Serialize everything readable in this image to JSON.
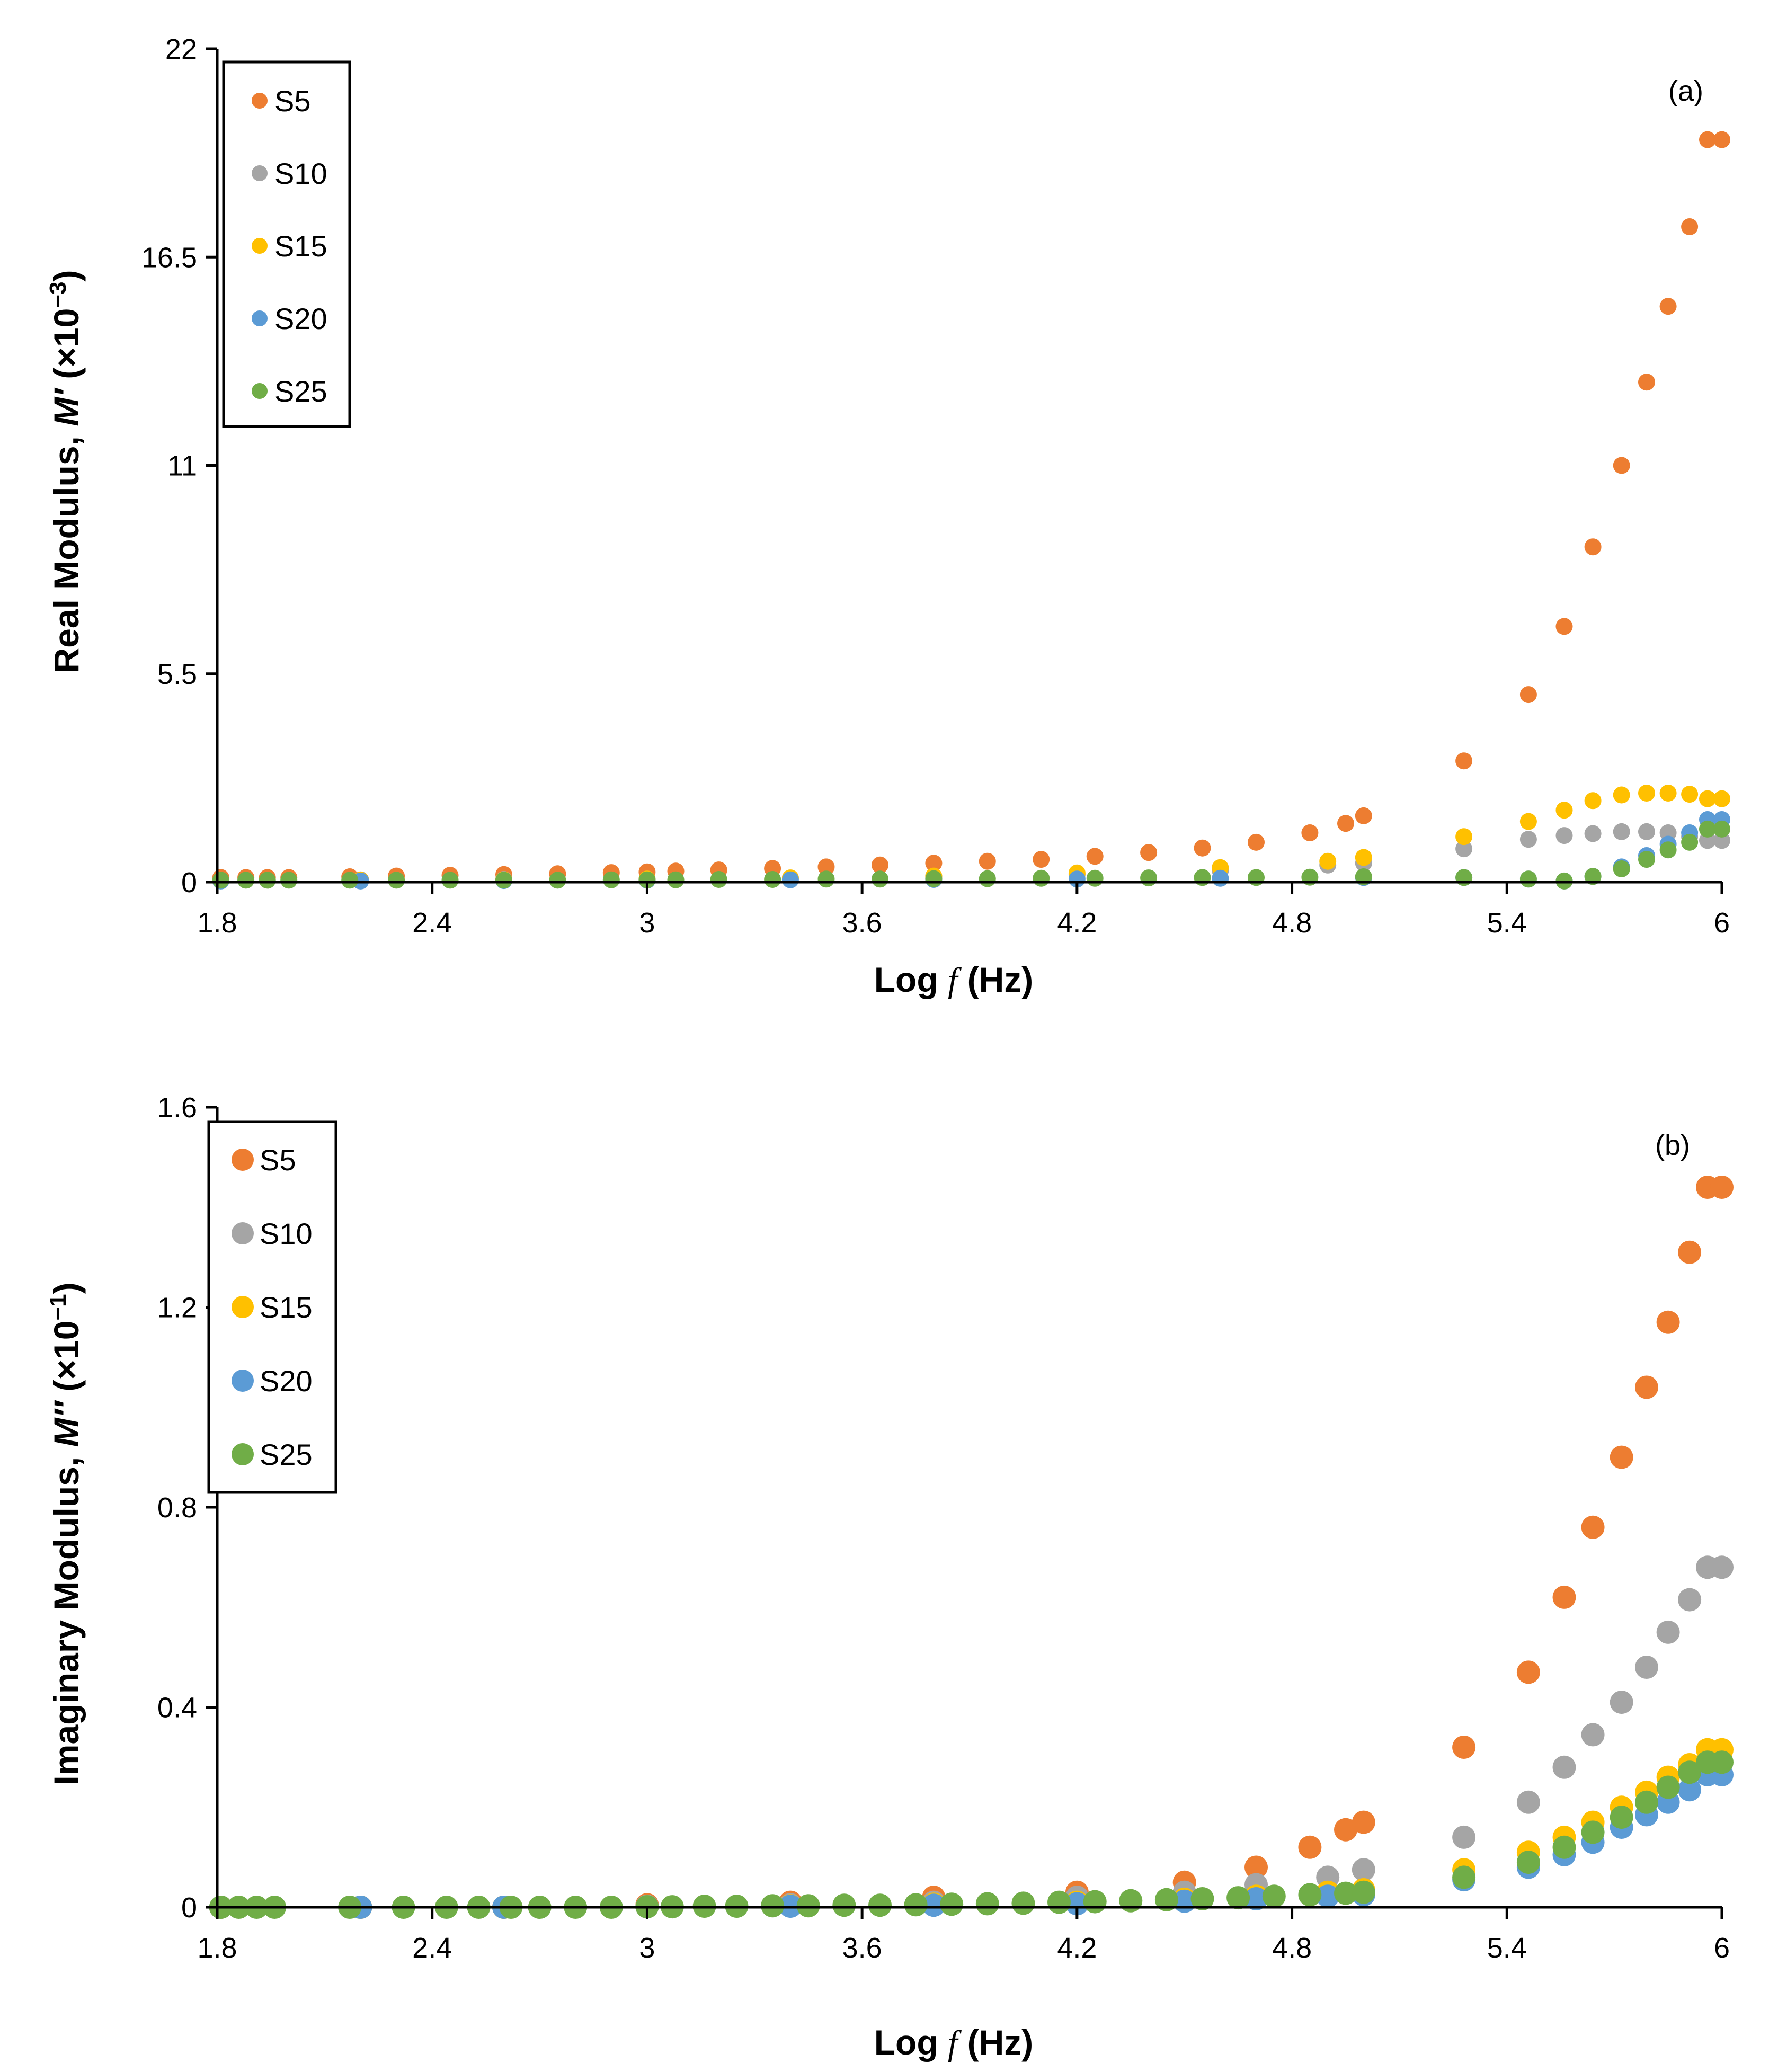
{
  "colors": {
    "S5": "#ED7D31",
    "S10": "#A5A5A5",
    "S15": "#FFC000",
    "S20": "#5B9BD5",
    "S25": "#70AD47",
    "axis": "#000000"
  },
  "chart_data": [
    {
      "type": "scatter",
      "panel_label": "(a)",
      "xlabel": "Log f (Hz)",
      "xlabel_parts": {
        "prefix": "Log ",
        "var": "f",
        "suffix": " (Hz)"
      },
      "ylabel": "Real Modulus, M′ (×10⁻³)",
      "ylabel_parts": {
        "prefix": "Real Modulus, ",
        "var": "M′",
        "suffix": " (×10",
        "exp": "−3",
        "close": ")"
      },
      "xlim": [
        1.8,
        6
      ],
      "ylim": [
        0,
        22
      ],
      "xticks": [
        "1.8",
        "2.4",
        "3",
        "3.6",
        "4.2",
        "4.8",
        "5.4",
        "6"
      ],
      "yticks": [
        "0",
        "5.5",
        "11",
        "16.5",
        "22"
      ],
      "legend_position": "top-left",
      "series": [
        {
          "name": "S5",
          "x": [
            1.81,
            1.88,
            1.94,
            2.0,
            2.17,
            2.3,
            2.45,
            2.6,
            2.75,
            2.9,
            3.0,
            3.08,
            3.2,
            3.35,
            3.5,
            3.65,
            3.8,
            3.95,
            4.1,
            4.25,
            4.4,
            4.55,
            4.7,
            4.85,
            4.95,
            5.0,
            5.28,
            5.46,
            5.56,
            5.64,
            5.72,
            5.79,
            5.85,
            5.91,
            5.96,
            6.0
          ],
          "y": [
            0.12,
            0.12,
            0.12,
            0.12,
            0.14,
            0.16,
            0.18,
            0.2,
            0.22,
            0.25,
            0.27,
            0.29,
            0.32,
            0.36,
            0.4,
            0.45,
            0.5,
            0.55,
            0.6,
            0.68,
            0.78,
            0.9,
            1.05,
            1.3,
            1.55,
            1.75,
            3.2,
            4.95,
            6.75,
            8.85,
            11.0,
            13.2,
            15.2,
            17.3,
            19.6,
            19.6
          ]
        },
        {
          "name": "S10",
          "x": [
            1.81,
            2.2,
            2.6,
            3.0,
            3.4,
            3.8,
            4.2,
            4.6,
            4.9,
            5.0,
            5.28,
            5.46,
            5.56,
            5.64,
            5.72,
            5.79,
            5.85,
            5.91,
            5.96,
            6.0
          ],
          "y": [
            0.05,
            0.06,
            0.07,
            0.08,
            0.1,
            0.14,
            0.2,
            0.3,
            0.45,
            0.5,
            0.88,
            1.13,
            1.23,
            1.28,
            1.33,
            1.33,
            1.3,
            1.2,
            1.1,
            1.1
          ]
        },
        {
          "name": "S15",
          "x": [
            1.81,
            2.2,
            2.6,
            3.0,
            3.4,
            3.8,
            4.2,
            4.6,
            4.9,
            5.0,
            5.28,
            5.46,
            5.56,
            5.64,
            5.72,
            5.79,
            5.85,
            5.91,
            5.96,
            6.0
          ],
          "y": [
            0.04,
            0.05,
            0.06,
            0.08,
            0.11,
            0.16,
            0.24,
            0.38,
            0.55,
            0.65,
            1.2,
            1.6,
            1.9,
            2.15,
            2.3,
            2.35,
            2.35,
            2.32,
            2.2,
            2.2
          ]
        },
        {
          "name": "S20",
          "x": [
            1.81,
            2.2,
            2.6,
            3.0,
            3.4,
            3.8,
            4.2,
            4.6,
            5.0,
            5.28,
            5.46,
            5.56,
            5.64,
            5.72,
            5.79,
            5.85,
            5.91,
            5.96,
            6.0
          ],
          "y": [
            0.03,
            0.03,
            0.04,
            0.05,
            0.06,
            0.07,
            0.08,
            0.1,
            0.12,
            0.12,
            0.08,
            0.03,
            0.15,
            0.4,
            0.7,
            1.0,
            1.3,
            1.65,
            1.65
          ]
        },
        {
          "name": "S25",
          "x": [
            1.81,
            1.88,
            1.94,
            2.0,
            2.17,
            2.3,
            2.45,
            2.6,
            2.75,
            2.9,
            3.0,
            3.08,
            3.2,
            3.35,
            3.5,
            3.65,
            3.8,
            3.95,
            4.1,
            4.25,
            4.4,
            4.55,
            4.7,
            4.85,
            5.0,
            5.28,
            5.46,
            5.56,
            5.64,
            5.72,
            5.79,
            5.85,
            5.91,
            5.96,
            6.0
          ],
          "y": [
            0.05,
            0.05,
            0.05,
            0.05,
            0.05,
            0.05,
            0.05,
            0.05,
            0.05,
            0.06,
            0.06,
            0.06,
            0.07,
            0.07,
            0.08,
            0.08,
            0.09,
            0.09,
            0.1,
            0.1,
            0.11,
            0.12,
            0.12,
            0.13,
            0.14,
            0.12,
            0.08,
            0.03,
            0.15,
            0.35,
            0.6,
            0.85,
            1.05,
            1.4,
            1.4
          ]
        }
      ]
    },
    {
      "type": "scatter",
      "panel_label": "(b)",
      "xlabel": "Log f (Hz)",
      "xlabel_parts": {
        "prefix": "Log ",
        "var": "f",
        "suffix": " (Hz)"
      },
      "ylabel": "Imaginary Modulus, M″ (×10⁻¹)",
      "ylabel_parts": {
        "prefix": "Imaginary Modulus, ",
        "var": "M″",
        "suffix": " (×10",
        "exp": "−1",
        "close": ")"
      },
      "xlim": [
        1.8,
        6
      ],
      "ylim": [
        0,
        1.6
      ],
      "xticks": [
        "1.8",
        "2.4",
        "3",
        "3.6",
        "4.2",
        "4.8",
        "5.4",
        "6"
      ],
      "yticks": [
        "0",
        "0.4",
        "0.8",
        "1.2",
        "1.6"
      ],
      "legend_position": "top-left",
      "series": [
        {
          "name": "S5",
          "x": [
            1.81,
            2.2,
            2.6,
            3.0,
            3.4,
            3.8,
            4.2,
            4.5,
            4.7,
            4.85,
            4.95,
            5.0,
            5.28,
            5.46,
            5.56,
            5.64,
            5.72,
            5.79,
            5.85,
            5.91,
            5.96,
            6.0
          ],
          "y": [
            0.0,
            0.0,
            0.0,
            0.005,
            0.01,
            0.02,
            0.03,
            0.05,
            0.08,
            0.12,
            0.155,
            0.17,
            0.32,
            0.47,
            0.62,
            0.76,
            0.9,
            1.04,
            1.17,
            1.31,
            1.44,
            1.44
          ]
        },
        {
          "name": "S10",
          "x": [
            1.81,
            2.2,
            2.6,
            3.0,
            3.4,
            3.8,
            4.2,
            4.5,
            4.7,
            4.9,
            5.0,
            5.28,
            5.46,
            5.56,
            5.64,
            5.72,
            5.79,
            5.85,
            5.91,
            5.96,
            6.0
          ],
          "y": [
            0.0,
            0.0,
            0.0,
            0.002,
            0.005,
            0.01,
            0.02,
            0.03,
            0.045,
            0.06,
            0.075,
            0.14,
            0.21,
            0.28,
            0.345,
            0.41,
            0.48,
            0.55,
            0.615,
            0.68,
            0.68
          ]
        },
        {
          "name": "S15",
          "x": [
            1.81,
            2.2,
            2.6,
            3.0,
            3.4,
            3.8,
            4.2,
            4.5,
            4.7,
            4.9,
            5.0,
            5.28,
            5.46,
            5.56,
            5.64,
            5.72,
            5.79,
            5.85,
            5.91,
            5.96,
            6.0
          ],
          "y": [
            0.0,
            0.0,
            0.0,
            0.001,
            0.003,
            0.006,
            0.01,
            0.016,
            0.022,
            0.03,
            0.035,
            0.075,
            0.11,
            0.14,
            0.17,
            0.2,
            0.23,
            0.26,
            0.285,
            0.315,
            0.315
          ]
        },
        {
          "name": "S20",
          "x": [
            1.81,
            2.2,
            2.6,
            3.0,
            3.4,
            3.8,
            4.2,
            4.5,
            4.7,
            4.9,
            5.0,
            5.28,
            5.46,
            5.56,
            5.64,
            5.72,
            5.79,
            5.85,
            5.91,
            5.96,
            6.0
          ],
          "y": [
            0.0,
            0.0,
            0.0,
            0.001,
            0.002,
            0.004,
            0.007,
            0.012,
            0.017,
            0.022,
            0.025,
            0.055,
            0.08,
            0.105,
            0.13,
            0.16,
            0.185,
            0.21,
            0.235,
            0.265,
            0.265
          ]
        },
        {
          "name": "S25",
          "x": [
            1.81,
            1.86,
            1.91,
            1.96,
            2.17,
            2.32,
            2.44,
            2.53,
            2.62,
            2.7,
            2.8,
            2.9,
            3.0,
            3.07,
            3.16,
            3.25,
            3.35,
            3.45,
            3.55,
            3.65,
            3.75,
            3.85,
            3.95,
            4.05,
            4.15,
            4.25,
            4.35,
            4.45,
            4.55,
            4.65,
            4.75,
            4.85,
            4.95,
            5.0,
            5.28,
            5.46,
            5.56,
            5.64,
            5.72,
            5.79,
            5.85,
            5.91,
            5.96,
            6.0
          ],
          "y": [
            0.0,
            0.0,
            0.0,
            0.0,
            0.0,
            0.0,
            0.0,
            0.0,
            0.0,
            0.0,
            0.0,
            0.0,
            0.001,
            0.001,
            0.002,
            0.002,
            0.003,
            0.003,
            0.004,
            0.004,
            0.005,
            0.006,
            0.007,
            0.008,
            0.01,
            0.011,
            0.013,
            0.015,
            0.017,
            0.019,
            0.022,
            0.025,
            0.028,
            0.03,
            0.06,
            0.09,
            0.12,
            0.15,
            0.18,
            0.21,
            0.24,
            0.27,
            0.29,
            0.29
          ]
        }
      ]
    }
  ]
}
